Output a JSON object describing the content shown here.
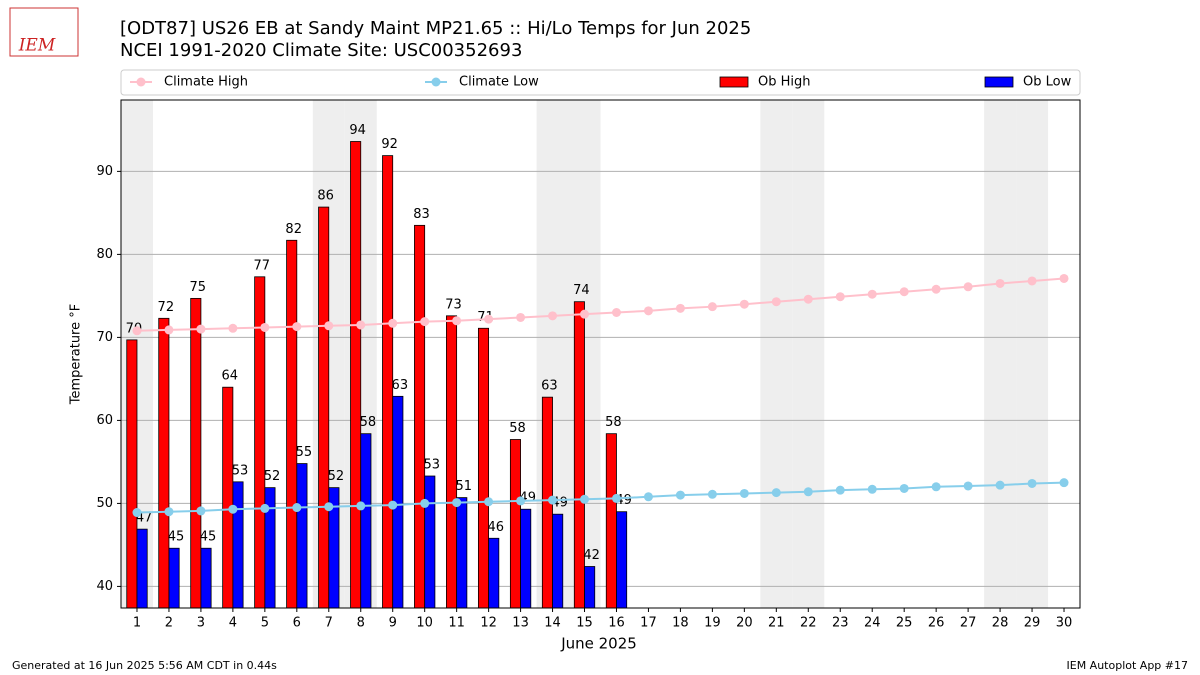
{
  "chart_data": {
    "type": "bar_line",
    "title": "[ODT87] US26 EB at Sandy Maint MP21.65  :: Hi/Lo Temps for Jun 2025",
    "subtitle": "NCEI 1991-2020 Climate Site: USC00352693",
    "logo_text": "IEM",
    "x_label": "June 2025",
    "y_label": "Temperature °F",
    "footer_left": "Generated at 16 Jun 2025 5:56 AM CDT in 0.44s",
    "footer_right": "IEM Autoplot App #17",
    "categories": [
      "1",
      "2",
      "3",
      "4",
      "5",
      "6",
      "7",
      "8",
      "9",
      "10",
      "11",
      "12",
      "13",
      "14",
      "15",
      "16",
      "17",
      "18",
      "19",
      "20",
      "21",
      "22",
      "23",
      "24",
      "25",
      "26",
      "27",
      "28",
      "29",
      "30"
    ],
    "shaded_categories": [
      0,
      6,
      7,
      13,
      14,
      20,
      21,
      27,
      28
    ],
    "ylim": [
      37.4,
      98.6
    ],
    "yticks": [
      40,
      50,
      60,
      70,
      80,
      90
    ],
    "grid": true,
    "series": [
      {
        "name": "Climate High",
        "kind": "line",
        "color": "#ffc0cb",
        "values": [
          70.8,
          70.9,
          71.0,
          71.1,
          71.2,
          71.3,
          71.4,
          71.5,
          71.7,
          71.9,
          72.0,
          72.2,
          72.4,
          72.6,
          72.8,
          73.0,
          73.2,
          73.5,
          73.7,
          74.0,
          74.3,
          74.6,
          74.9,
          75.2,
          75.5,
          75.8,
          76.1,
          76.5,
          76.8,
          77.1
        ]
      },
      {
        "name": "Climate Low",
        "kind": "line",
        "color": "#87ceeb",
        "values": [
          48.9,
          49.0,
          49.1,
          49.3,
          49.4,
          49.5,
          49.6,
          49.7,
          49.8,
          50.0,
          50.1,
          50.2,
          50.3,
          50.4,
          50.5,
          50.6,
          50.8,
          51.0,
          51.1,
          51.2,
          51.3,
          51.4,
          51.6,
          51.7,
          51.8,
          52.0,
          52.1,
          52.2,
          52.4,
          52.5
        ]
      },
      {
        "name": "Ob High",
        "kind": "bar",
        "color": "#ff0000",
        "values": [
          69.7,
          72.3,
          74.7,
          64.0,
          77.3,
          81.7,
          85.7,
          93.6,
          91.9,
          83.5,
          72.6,
          71.1,
          57.7,
          62.8,
          74.3,
          58.4,
          null,
          null,
          null,
          null,
          null,
          null,
          null,
          null,
          null,
          null,
          null,
          null,
          null,
          null
        ],
        "value_labels": [
          "70",
          "72",
          "75",
          "64",
          "77",
          "82",
          "86",
          "94",
          "92",
          "83",
          "73",
          "71",
          "58",
          "63",
          "74",
          "58",
          null,
          null,
          null,
          null,
          null,
          null,
          null,
          null,
          null,
          null,
          null,
          null,
          null,
          null
        ]
      },
      {
        "name": "Ob Low",
        "kind": "bar",
        "color": "#0000ff",
        "values": [
          46.9,
          44.6,
          44.6,
          52.6,
          51.9,
          54.8,
          51.9,
          58.4,
          62.9,
          53.3,
          50.7,
          45.8,
          49.3,
          48.7,
          42.4,
          49.0,
          null,
          null,
          null,
          null,
          null,
          null,
          null,
          null,
          null,
          null,
          null,
          null,
          null,
          null
        ],
        "value_labels": [
          "47",
          "45",
          "45",
          "53",
          "52",
          "55",
          "52",
          "58",
          "63",
          "53",
          "51",
          "46",
          "49",
          "49",
          "42",
          "49",
          null,
          null,
          null,
          null,
          null,
          null,
          null,
          null,
          null,
          null,
          null,
          null,
          null,
          null
        ]
      }
    ]
  }
}
